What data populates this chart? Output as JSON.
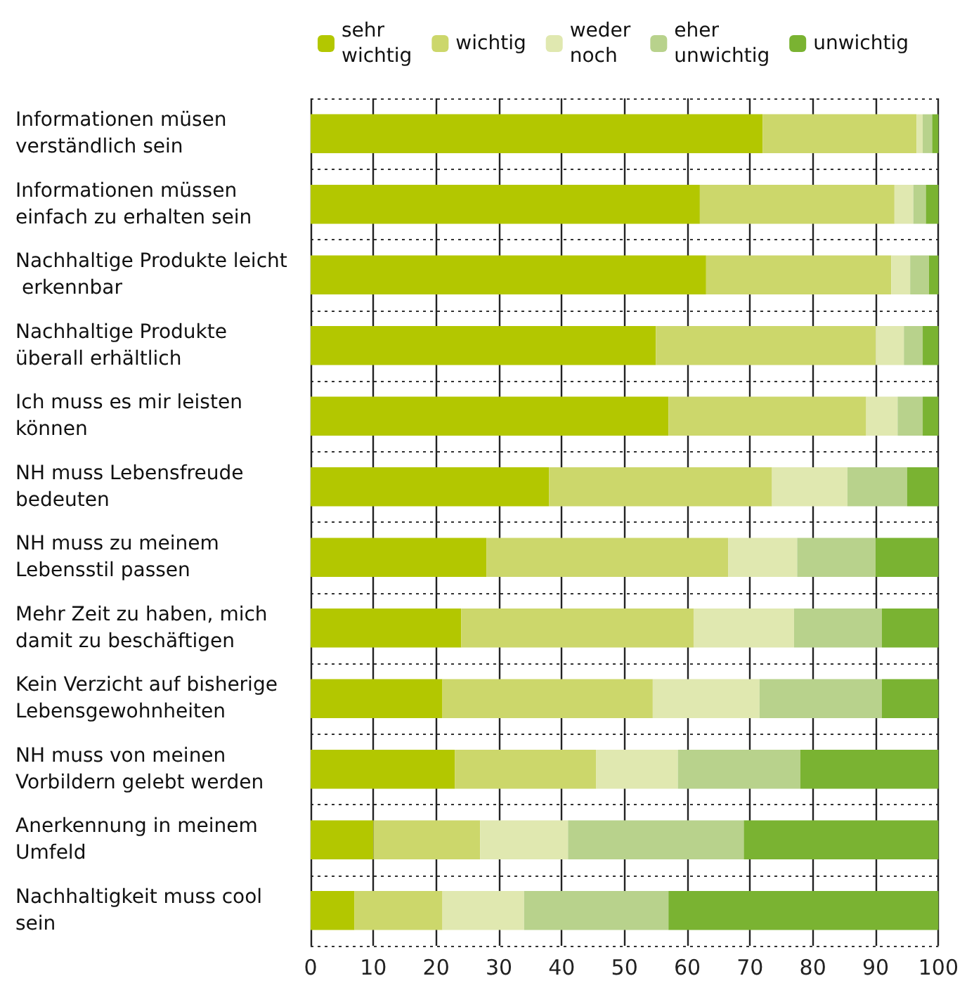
{
  "chart_data": {
    "type": "bar",
    "orientation": "horizontal",
    "stacked": true,
    "categories": [
      "Informationen müsen verständlich sein",
      "Informationen müssen einfach zu erhalten sein",
      "Nachhaltige Produkte leicht erkennbar",
      "Nachhaltige Produkte überall erhältlich",
      "Ich muss es mir leisten können",
      "NH muss Lebensfreude bedeuten",
      "NH muss zu meinem Lebensstil passen",
      "Mehr Zeit zu haben, mich damit zu beschäftigen",
      "Kein Verzicht auf bisherige Lebensgewohnheiten",
      "NH muss von meinen Vorbildern gelebt werden",
      "Anerkennung in meinem Umfeld",
      "Nachhaltigkeit muss cool sein"
    ],
    "series": [
      {
        "name": "sehr wichtig",
        "color": "#b3c700",
        "values": [
          72,
          62,
          63,
          55,
          57,
          38,
          28,
          24,
          21,
          23,
          10,
          7
        ]
      },
      {
        "name": "wichtig",
        "color": "#ccd76b",
        "values": [
          24.5,
          31,
          29.5,
          35,
          31.5,
          35.5,
          38.5,
          37,
          33.5,
          22.5,
          17,
          14
        ]
      },
      {
        "name": "weder noch",
        "color": "#e0e8b0",
        "values": [
          1,
          3,
          3,
          4.5,
          5,
          12,
          11,
          16,
          17,
          13,
          14,
          13
        ]
      },
      {
        "name": "eher unwichtig",
        "color": "#b8d28c",
        "values": [
          1.5,
          2,
          3,
          3,
          4,
          9.5,
          12.5,
          14,
          19.5,
          19.5,
          28,
          23
        ]
      },
      {
        "name": "unwichtig",
        "color": "#7ab332",
        "values": [
          1,
          2,
          1.5,
          2.5,
          2.5,
          5,
          10,
          9,
          9,
          22,
          31,
          43
        ]
      }
    ],
    "xlim": [
      0,
      100
    ],
    "xticks": [
      0,
      10,
      20,
      30,
      40,
      50,
      60,
      70,
      80,
      90,
      100
    ],
    "grid": true,
    "legend": "top"
  }
}
